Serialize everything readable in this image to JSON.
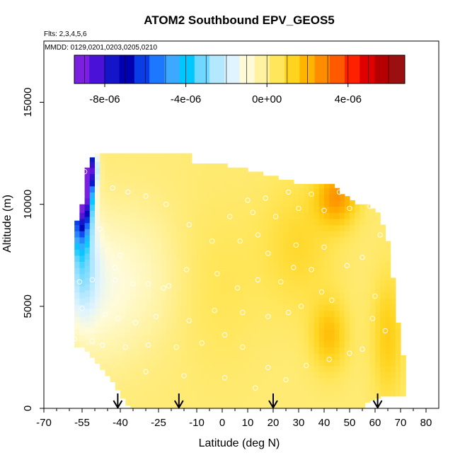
{
  "chart_data": {
    "type": "heatmap",
    "title": "ATOM2 Southbound EPV_GEOS5",
    "flights_label": "Flts: 2,3,4,5,6",
    "dates_label": "MMDD: 0129,0201,0203,0205,0210",
    "xlabel": "Latitude (deg N)",
    "ylabel": "Altitude (m)",
    "xlim": [
      -70,
      85
    ],
    "ylim": [
      0,
      18000
    ],
    "x_ticks": [
      -70,
      -55,
      -40,
      -25,
      -10,
      0,
      10,
      20,
      30,
      40,
      50,
      60,
      70,
      80
    ],
    "x_tick_labels": [
      "-70",
      "-55",
      "-40",
      "-25",
      "-10",
      "0",
      "10",
      "20",
      "30",
      "40",
      "50",
      "60",
      "70",
      "80"
    ],
    "x_minor_ticks": [
      -65,
      -60,
      -50,
      -45,
      -35,
      -30,
      -20,
      -15,
      -5,
      5,
      15,
      25,
      35,
      45,
      55,
      65,
      75
    ],
    "y_ticks": [
      0,
      5000,
      10000,
      15000
    ],
    "y_tick_labels": [
      "0",
      "5000",
      "10000",
      "15000"
    ],
    "colorbar": {
      "range": [
        -9.5e-06,
        6.8e-06
      ],
      "tick_values": [
        -8e-06,
        -4e-06,
        0,
        4e-06
      ],
      "tick_labels": [
        "-8e-06",
        "-4e-06",
        "0e+00",
        "4e-06"
      ],
      "colors": [
        "#7B1FE0",
        "#4A12D8",
        "#1414C8",
        "#0000B0",
        "#0A3CE6",
        "#1E78FF",
        "#3CA8FF",
        "#00C8FF",
        "#70D8FF",
        "#B4E8FF",
        "#E0F4FF",
        "#FFFBD8",
        "#FFF2A0",
        "#FFE65A",
        "#FFD41E",
        "#FFB400",
        "#FF8C00",
        "#FF5A00",
        "#FF2000",
        "#E00000",
        "#B40000",
        "#9A1010"
      ]
    },
    "arrows_latitude": [
      -41,
      -17,
      20,
      61
    ],
    "columns": [
      {
        "lat": -57,
        "ztop": 9200,
        "zbot": 3000
      },
      {
        "lat": -55,
        "ztop": 10000,
        "zbot": 3000
      },
      {
        "lat": -53,
        "ztop": 11800,
        "zbot": 2800
      },
      {
        "lat": -51,
        "ztop": 12300,
        "zbot": 2500
      },
      {
        "lat": -49,
        "ztop": 12500,
        "zbot": 2200
      },
      {
        "lat": -47,
        "ztop": 12500,
        "zbot": 1900
      },
      {
        "lat": -45,
        "ztop": 12500,
        "zbot": 1600
      },
      {
        "lat": -43,
        "ztop": 12500,
        "zbot": 1300
      },
      {
        "lat": -41,
        "ztop": 12500,
        "zbot": 900
      },
      {
        "lat": -39,
        "ztop": 12500,
        "zbot": 500
      },
      {
        "lat": -37,
        "ztop": 12500,
        "zbot": 150
      },
      {
        "lat": -35,
        "ztop": 12500,
        "zbot": 0
      },
      {
        "lat": -33,
        "ztop": 12500,
        "zbot": 0
      },
      {
        "lat": -31,
        "ztop": 12500,
        "zbot": 0
      },
      {
        "lat": -29,
        "ztop": 12500,
        "zbot": 0
      },
      {
        "lat": -27,
        "ztop": 12500,
        "zbot": 0
      },
      {
        "lat": -25,
        "ztop": 12500,
        "zbot": 0
      },
      {
        "lat": -23,
        "ztop": 12500,
        "zbot": 0
      },
      {
        "lat": -21,
        "ztop": 12500,
        "zbot": 0
      },
      {
        "lat": -19,
        "ztop": 12500,
        "zbot": 0
      },
      {
        "lat": -17,
        "ztop": 12500,
        "zbot": 0
      },
      {
        "lat": -15,
        "ztop": 12500,
        "zbot": 0
      },
      {
        "lat": -13,
        "ztop": 12500,
        "zbot": 0
      },
      {
        "lat": -11,
        "ztop": 12000,
        "zbot": 0
      },
      {
        "lat": -9,
        "ztop": 12000,
        "zbot": 0
      },
      {
        "lat": -7,
        "ztop": 12000,
        "zbot": 0
      },
      {
        "lat": -5,
        "ztop": 12000,
        "zbot": 0
      },
      {
        "lat": -3,
        "ztop": 12000,
        "zbot": 0
      },
      {
        "lat": -1,
        "ztop": 12000,
        "zbot": 0
      },
      {
        "lat": 1,
        "ztop": 12000,
        "zbot": 0
      },
      {
        "lat": 3,
        "ztop": 11800,
        "zbot": 0
      },
      {
        "lat": 5,
        "ztop": 11800,
        "zbot": 0
      },
      {
        "lat": 7,
        "ztop": 11800,
        "zbot": 0
      },
      {
        "lat": 9,
        "ztop": 11800,
        "zbot": 0
      },
      {
        "lat": 11,
        "ztop": 11600,
        "zbot": 0
      },
      {
        "lat": 13,
        "ztop": 11600,
        "zbot": 0
      },
      {
        "lat": 15,
        "ztop": 11600,
        "zbot": 0
      },
      {
        "lat": 17,
        "ztop": 11400,
        "zbot": 0
      },
      {
        "lat": 19,
        "ztop": 11400,
        "zbot": 0
      },
      {
        "lat": 21,
        "ztop": 11400,
        "zbot": 0
      },
      {
        "lat": 23,
        "ztop": 11200,
        "zbot": 0
      },
      {
        "lat": 25,
        "ztop": 11200,
        "zbot": 0
      },
      {
        "lat": 27,
        "ztop": 11200,
        "zbot": 0
      },
      {
        "lat": 29,
        "ztop": 11000,
        "zbot": 0
      },
      {
        "lat": 31,
        "ztop": 11000,
        "zbot": 0
      },
      {
        "lat": 33,
        "ztop": 11000,
        "zbot": 0
      },
      {
        "lat": 35,
        "ztop": 11000,
        "zbot": 0
      },
      {
        "lat": 37,
        "ztop": 11000,
        "zbot": 0
      },
      {
        "lat": 39,
        "ztop": 11000,
        "zbot": 0
      },
      {
        "lat": 41,
        "ztop": 11000,
        "zbot": 0
      },
      {
        "lat": 43,
        "ztop": 11000,
        "zbot": 0
      },
      {
        "lat": 45,
        "ztop": 10800,
        "zbot": 0
      },
      {
        "lat": 47,
        "ztop": 10500,
        "zbot": 0
      },
      {
        "lat": 49,
        "ztop": 10400,
        "zbot": 0
      },
      {
        "lat": 51,
        "ztop": 10200,
        "zbot": 0
      },
      {
        "lat": 53,
        "ztop": 10000,
        "zbot": 0
      },
      {
        "lat": 55,
        "ztop": 10000,
        "zbot": 0
      },
      {
        "lat": 57,
        "ztop": 10000,
        "zbot": 300
      },
      {
        "lat": 59,
        "ztop": 9800,
        "zbot": 400
      },
      {
        "lat": 61,
        "ztop": 9600,
        "zbot": 500
      },
      {
        "lat": 63,
        "ztop": 9000,
        "zbot": 600
      },
      {
        "lat": 65,
        "ztop": 8200,
        "zbot": 600
      },
      {
        "lat": 67,
        "ztop": 6400,
        "zbot": 600
      },
      {
        "lat": 69,
        "ztop": 4200,
        "zbot": 600
      },
      {
        "lat": 71,
        "ztop": 2600,
        "zbot": 600
      }
    ],
    "value_field": {
      "background_mid": 3e-07,
      "hotspots": [
        {
          "lat": -54,
          "alt": 10800,
          "value": -8.8e-06,
          "lat_scale": 3,
          "alt_scale": 1500
        },
        {
          "lat": -52,
          "alt": 11800,
          "value": -8e-06,
          "lat_scale": 2.5,
          "alt_scale": 900
        },
        {
          "lat": -56,
          "alt": 9300,
          "value": -4.5e-06,
          "lat_scale": 4,
          "alt_scale": 1500
        },
        {
          "lat": -55,
          "alt": 7000,
          "value": -2.4e-06,
          "lat_scale": 6,
          "alt_scale": 2600
        },
        {
          "lat": -48,
          "alt": 6000,
          "value": -1.2e-06,
          "lat_scale": 14,
          "alt_scale": 3500
        },
        {
          "lat": -30,
          "alt": 6500,
          "value": -6e-07,
          "lat_scale": 14,
          "alt_scale": 3500
        },
        {
          "lat": 45,
          "alt": 10400,
          "value": 2.4e-06,
          "lat_scale": 8,
          "alt_scale": 1400
        },
        {
          "lat": 42,
          "alt": 3600,
          "value": 1.6e-06,
          "lat_scale": 7,
          "alt_scale": 1700
        },
        {
          "lat": 65,
          "alt": 3500,
          "value": 1.3e-06,
          "lat_scale": 6,
          "alt_scale": 3000
        },
        {
          "lat": 30,
          "alt": 8000,
          "value": 9e-07,
          "lat_scale": 14,
          "alt_scale": 3000
        },
        {
          "lat": 0,
          "alt": 6000,
          "value": 4e-07,
          "lat_scale": 15,
          "alt_scale": 4000
        }
      ]
    },
    "observations": [
      {
        "lat": -54,
        "alt": 11600
      },
      {
        "lat": -55,
        "alt": 10400
      },
      {
        "lat": -59,
        "alt": 9800
      },
      {
        "lat": -43,
        "alt": 10800
      },
      {
        "lat": -37,
        "alt": 10600
      },
      {
        "lat": -30,
        "alt": 10400
      },
      {
        "lat": -22,
        "alt": 10000
      },
      {
        "lat": -48,
        "alt": 8800
      },
      {
        "lat": -40,
        "alt": 7500
      },
      {
        "lat": -42,
        "alt": 6900
      },
      {
        "lat": -56,
        "alt": 6200
      },
      {
        "lat": -51,
        "alt": 6300
      },
      {
        "lat": -42,
        "alt": 6300
      },
      {
        "lat": -35,
        "alt": 6100
      },
      {
        "lat": -29,
        "alt": 6100
      },
      {
        "lat": -21,
        "alt": 6000
      },
      {
        "lat": -63,
        "alt": 5800
      },
      {
        "lat": -55,
        "alt": 4900
      },
      {
        "lat": -46,
        "alt": 4600
      },
      {
        "lat": -41,
        "alt": 4400
      },
      {
        "lat": -34,
        "alt": 4200
      },
      {
        "lat": -26,
        "alt": 4500
      },
      {
        "lat": -13,
        "alt": 4300
      },
      {
        "lat": -58,
        "alt": 3400
      },
      {
        "lat": -51,
        "alt": 3300
      },
      {
        "lat": -47,
        "alt": 3100
      },
      {
        "lat": -38,
        "alt": 3000
      },
      {
        "lat": -29,
        "alt": 3100
      },
      {
        "lat": -18,
        "alt": 3000
      },
      {
        "lat": -8,
        "alt": 3200
      },
      {
        "lat": 1,
        "alt": 3600
      },
      {
        "lat": 8,
        "alt": 3000
      },
      {
        "lat": 18,
        "alt": 2000
      },
      {
        "lat": -30,
        "alt": 1800
      },
      {
        "lat": -15,
        "alt": 1600
      },
      {
        "lat": 1,
        "alt": 1500
      },
      {
        "lat": 13,
        "alt": 1000
      },
      {
        "lat": 25,
        "alt": 1400
      },
      {
        "lat": 33,
        "alt": 2100
      },
      {
        "lat": 42,
        "alt": 2400
      },
      {
        "lat": 50,
        "alt": 2700
      },
      {
        "lat": 55,
        "alt": 2900
      },
      {
        "lat": 59,
        "alt": 4400
      },
      {
        "lat": 64,
        "alt": 3800
      },
      {
        "lat": 60,
        "alt": 5500
      },
      {
        "lat": 43,
        "alt": 5300
      },
      {
        "lat": 39,
        "alt": 5700
      },
      {
        "lat": 31,
        "alt": 5000
      },
      {
        "lat": 26,
        "alt": 4700
      },
      {
        "lat": 18,
        "alt": 4500
      },
      {
        "lat": 8,
        "alt": 4700
      },
      {
        "lat": -3,
        "alt": 4800
      },
      {
        "lat": 6,
        "alt": 5900
      },
      {
        "lat": 14,
        "alt": 6300
      },
      {
        "lat": 23,
        "alt": 6200
      },
      {
        "lat": 28,
        "alt": 6900
      },
      {
        "lat": 35,
        "alt": 6800
      },
      {
        "lat": 49,
        "alt": 7000
      },
      {
        "lat": 55,
        "alt": 7400
      },
      {
        "lat": 40,
        "alt": 7900
      },
      {
        "lat": 29,
        "alt": 8000
      },
      {
        "lat": 18,
        "alt": 7600
      },
      {
        "lat": 7,
        "alt": 8200
      },
      {
        "lat": -4,
        "alt": 8200
      },
      {
        "lat": -13,
        "alt": 9000
      },
      {
        "lat": 3,
        "alt": 9400
      },
      {
        "lat": 12,
        "alt": 9600
      },
      {
        "lat": 21,
        "alt": 9400
      },
      {
        "lat": 30,
        "alt": 9800
      },
      {
        "lat": 40,
        "alt": 9700
      },
      {
        "lat": 50,
        "alt": 9800
      },
      {
        "lat": 58,
        "alt": 9900
      },
      {
        "lat": 26,
        "alt": 10600
      },
      {
        "lat": 35,
        "alt": 10500
      },
      {
        "lat": 46,
        "alt": 10600
      },
      {
        "lat": 17,
        "alt": 10300
      },
      {
        "lat": 10,
        "alt": 10200
      },
      {
        "lat": 53,
        "alt": 10300
      },
      {
        "lat": 62,
        "alt": 8500
      },
      {
        "lat": 14,
        "alt": 8500
      },
      {
        "lat": -23,
        "alt": 5900
      },
      {
        "lat": -14,
        "alt": 6800
      },
      {
        "lat": -2,
        "alt": 6600
      }
    ]
  }
}
